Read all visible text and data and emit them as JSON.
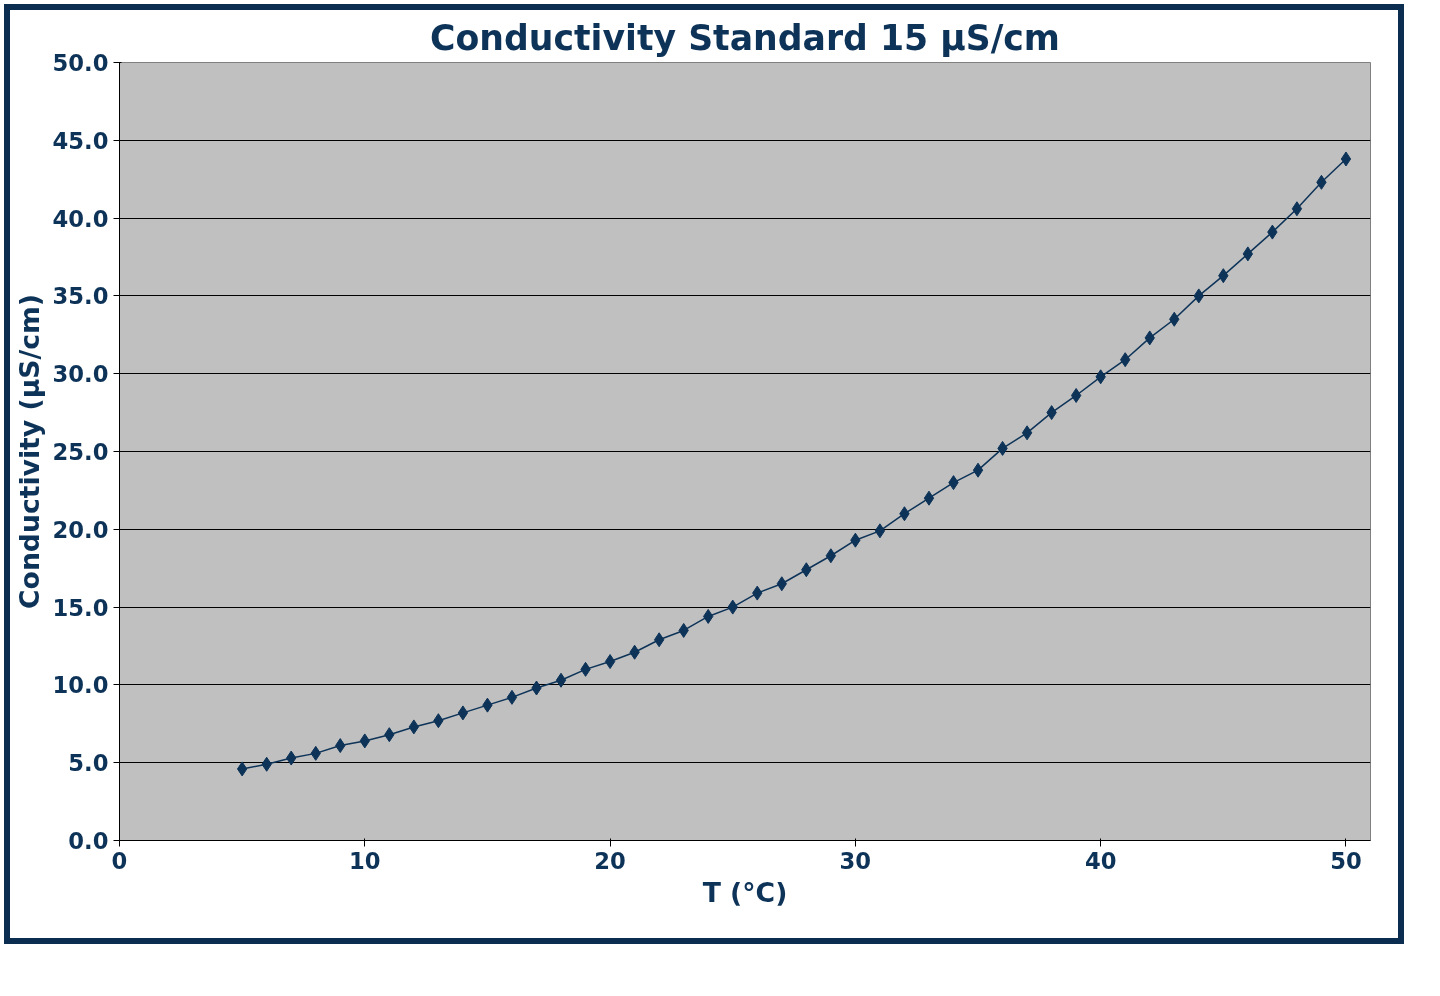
{
  "chart_data": {
    "type": "line",
    "title": "Conductivity Standard 15 µS/cm",
    "xlabel": "T (°C)",
    "ylabel": "Conductivity (µS/cm)",
    "x": [
      5,
      6,
      7,
      8,
      9,
      10,
      11,
      12,
      13,
      14,
      15,
      16,
      17,
      18,
      19,
      20,
      21,
      22,
      23,
      24,
      25,
      26,
      27,
      28,
      29,
      30,
      31,
      32,
      33,
      34,
      35,
      36,
      37,
      38,
      39,
      40,
      41,
      42,
      43,
      44,
      45,
      46,
      47,
      48,
      49,
      50
    ],
    "series": [
      {
        "color": "#0d3358",
        "values": [
          4.6,
          4.9,
          5.3,
          5.6,
          6.1,
          6.4,
          6.8,
          7.3,
          7.7,
          8.2,
          8.7,
          9.2,
          9.8,
          10.3,
          11.0,
          11.5,
          12.1,
          12.9,
          13.5,
          14.4,
          15.0,
          15.9,
          16.5,
          17.4,
          18.3,
          19.3,
          19.9,
          21.0,
          22.0,
          23.0,
          23.8,
          25.2,
          26.2,
          27.5,
          28.6,
          29.8,
          30.9,
          32.3,
          33.5,
          35.0,
          36.3,
          37.7,
          39.1,
          40.6,
          42.3,
          43.8
        ]
      }
    ],
    "xlim": [
      0,
      51
    ],
    "xticks": [
      0,
      10,
      20,
      30,
      40,
      50
    ],
    "ylim": [
      0,
      50
    ],
    "yticks": [
      {
        "value": 0,
        "label": "0.0"
      },
      {
        "value": 5,
        "label": "5.0"
      },
      {
        "value": 10,
        "label": "10.0"
      },
      {
        "value": 15,
        "label": "15.0"
      },
      {
        "value": 20,
        "label": "20.0"
      },
      {
        "value": 25,
        "label": "25.0"
      },
      {
        "value": 30,
        "label": "30.0"
      },
      {
        "value": 35,
        "label": "35.0"
      },
      {
        "value": 40,
        "label": "40.0"
      },
      {
        "value": 45,
        "label": "45.0"
      },
      {
        "value": 50,
        "label": "50.0"
      }
    ],
    "grid": "y",
    "marker": "diamond",
    "line_style": "solid"
  }
}
